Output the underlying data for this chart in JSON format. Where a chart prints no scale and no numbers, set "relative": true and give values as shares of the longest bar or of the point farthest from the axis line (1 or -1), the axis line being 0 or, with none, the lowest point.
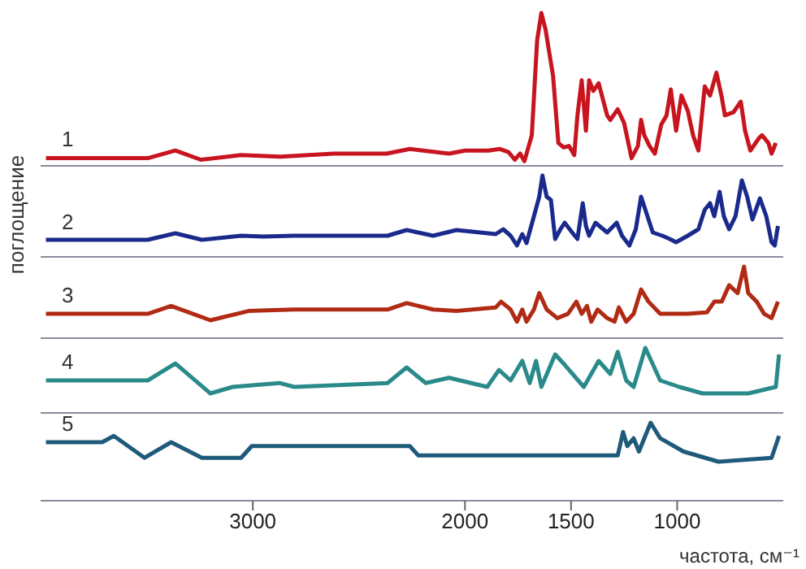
{
  "chart_data": [
    {
      "type": "line",
      "relative": true,
      "xlim": [
        4000,
        500
      ],
      "xticks": [
        3000,
        2000,
        1500,
        1000
      ],
      "tick_labels": false,
      "x": [
        3975,
        3495,
        3365,
        3245,
        3055,
        2870,
        2620,
        2370,
        2260,
        2075,
        2000,
        1890,
        1835,
        1795,
        1765,
        1740,
        1720,
        1685,
        1660,
        1640,
        1620,
        1605,
        1585,
        1560,
        1535,
        1510,
        1485,
        1470,
        1450,
        1430,
        1415,
        1395,
        1370,
        1330,
        1315,
        1280,
        1250,
        1215,
        1185,
        1170,
        1155,
        1130,
        1105,
        1075,
        1050,
        1030,
        1005,
        980,
        950,
        925,
        900,
        870,
        845,
        815,
        790,
        775,
        735,
        700,
        680,
        655,
        615,
        600,
        570,
        555,
        535
      ],
      "series": [
        {
          "name": "1",
          "color": "#c8141e",
          "values": [
            0.05,
            0.05,
            0.1,
            0.04,
            0.07,
            0.06,
            0.08,
            0.08,
            0.11,
            0.08,
            0.1,
            0.1,
            0.11,
            0.09,
            0.04,
            0.08,
            0.03,
            0.2,
            0.82,
            1.0,
            0.89,
            0.76,
            0.59,
            0.15,
            0.12,
            0.13,
            0.07,
            0.33,
            0.56,
            0.23,
            0.56,
            0.49,
            0.54,
            0.33,
            0.3,
            0.37,
            0.28,
            0.05,
            0.13,
            0.3,
            0.2,
            0.13,
            0.08,
            0.27,
            0.33,
            0.5,
            0.23,
            0.46,
            0.36,
            0.2,
            0.1,
            0.52,
            0.46,
            0.61,
            0.45,
            0.33,
            0.35,
            0.42,
            0.23,
            0.1,
            0.18,
            0.2,
            0.15,
            0.08,
            0.15
          ]
        }
      ]
    },
    {
      "type": "line",
      "relative": true,
      "xlim": [
        4000,
        500
      ],
      "xticks": [
        3000,
        2000,
        1500,
        1000
      ],
      "tick_labels": false,
      "ylabel": "поглощение",
      "x": [
        3975,
        3495,
        3365,
        3240,
        3055,
        2950,
        2805,
        2365,
        2275,
        2150,
        2040,
        1855,
        1820,
        1785,
        1755,
        1730,
        1710,
        1675,
        1650,
        1635,
        1615,
        1595,
        1575,
        1550,
        1530,
        1495,
        1470,
        1445,
        1430,
        1415,
        1385,
        1330,
        1285,
        1260,
        1225,
        1195,
        1170,
        1150,
        1115,
        1070,
        1035,
        1005,
        950,
        900,
        870,
        845,
        825,
        800,
        780,
        755,
        725,
        695,
        670,
        645,
        610,
        580,
        555,
        540,
        525
      ],
      "series": [
        {
          "name": "2",
          "color": "#1a2a8c",
          "values": [
            0.21,
            0.21,
            0.29,
            0.21,
            0.26,
            0.25,
            0.26,
            0.26,
            0.33,
            0.26,
            0.33,
            0.28,
            0.34,
            0.26,
            0.14,
            0.28,
            0.17,
            0.5,
            0.74,
            1.0,
            0.74,
            0.7,
            0.22,
            0.34,
            0.42,
            0.3,
            0.22,
            0.66,
            0.38,
            0.26,
            0.42,
            0.3,
            0.42,
            0.26,
            0.14,
            0.34,
            0.74,
            0.58,
            0.3,
            0.26,
            0.22,
            0.18,
            0.26,
            0.34,
            0.58,
            0.66,
            0.5,
            0.8,
            0.5,
            0.34,
            0.5,
            0.94,
            0.74,
            0.46,
            0.72,
            0.5,
            0.18,
            0.14,
            0.38
          ]
        }
      ]
    },
    {
      "type": "line",
      "relative": true,
      "xlim": [
        4000,
        500
      ],
      "xticks": [
        3000,
        2000,
        1500,
        1000
      ],
      "tick_labels": false,
      "x": [
        3975,
        3495,
        3385,
        3200,
        3020,
        2805,
        2365,
        2275,
        2150,
        2040,
        1855,
        1830,
        1785,
        1755,
        1730,
        1710,
        1675,
        1650,
        1615,
        1565,
        1515,
        1475,
        1450,
        1425,
        1405,
        1375,
        1330,
        1295,
        1275,
        1240,
        1205,
        1170,
        1135,
        1080,
        950,
        860,
        825,
        790,
        755,
        715,
        685,
        665,
        625,
        590,
        555,
        525
      ],
      "series": [
        {
          "name": "3",
          "color": "#b02a14",
          "values": [
            0.34,
            0.34,
            0.45,
            0.25,
            0.38,
            0.4,
            0.4,
            0.49,
            0.4,
            0.38,
            0.43,
            0.51,
            0.4,
            0.23,
            0.4,
            0.23,
            0.4,
            0.63,
            0.4,
            0.28,
            0.34,
            0.51,
            0.34,
            0.45,
            0.23,
            0.4,
            0.28,
            0.23,
            0.43,
            0.23,
            0.34,
            0.68,
            0.51,
            0.34,
            0.34,
            0.36,
            0.51,
            0.51,
            0.74,
            0.63,
            1.0,
            0.63,
            0.51,
            0.34,
            0.28,
            0.51
          ]
        }
      ]
    },
    {
      "type": "line",
      "relative": true,
      "xlim": [
        4000,
        500
      ],
      "xticks": [
        3000,
        2000,
        1500,
        1000
      ],
      "tick_labels": false,
      "x": [
        3975,
        3495,
        3365,
        3200,
        3095,
        2875,
        2805,
        2365,
        2275,
        2185,
        2075,
        1895,
        1840,
        1785,
        1730,
        1695,
        1665,
        1640,
        1575,
        1530,
        1440,
        1370,
        1315,
        1280,
        1240,
        1205,
        1150,
        1080,
        990,
        880,
        665,
        535,
        520
      ],
      "series": [
        {
          "name": "4",
          "color": "#2a8a8a",
          "values": [
            0.5,
            0.5,
            0.76,
            0.3,
            0.4,
            0.46,
            0.4,
            0.46,
            0.7,
            0.46,
            0.54,
            0.4,
            0.66,
            0.5,
            0.8,
            0.46,
            0.8,
            0.4,
            0.9,
            0.74,
            0.4,
            0.8,
            0.6,
            0.94,
            0.5,
            0.4,
            1.0,
            0.5,
            0.4,
            0.3,
            0.3,
            0.4,
            0.9
          ]
        }
      ]
    },
    {
      "type": "line",
      "relative": true,
      "xlim": [
        4000,
        500
      ],
      "xticks": [
        3000,
        2000,
        1500,
        1000
      ],
      "tick_labels": "x",
      "xlabel": "частота, см⁻¹",
      "x": [
        3975,
        3710,
        3655,
        3510,
        3385,
        3240,
        3055,
        3005,
        2260,
        2220,
        1280,
        1255,
        1235,
        1205,
        1180,
        1125,
        1080,
        970,
        805,
        555,
        520
      ],
      "series": [
        {
          "name": "5",
          "color": "#1e5a7a",
          "values": [
            0.75,
            0.75,
            0.83,
            0.55,
            0.75,
            0.55,
            0.55,
            0.7,
            0.7,
            0.58,
            0.58,
            0.88,
            0.7,
            0.8,
            0.63,
            1.0,
            0.8,
            0.63,
            0.5,
            0.55,
            0.83
          ]
        }
      ]
    }
  ]
}
